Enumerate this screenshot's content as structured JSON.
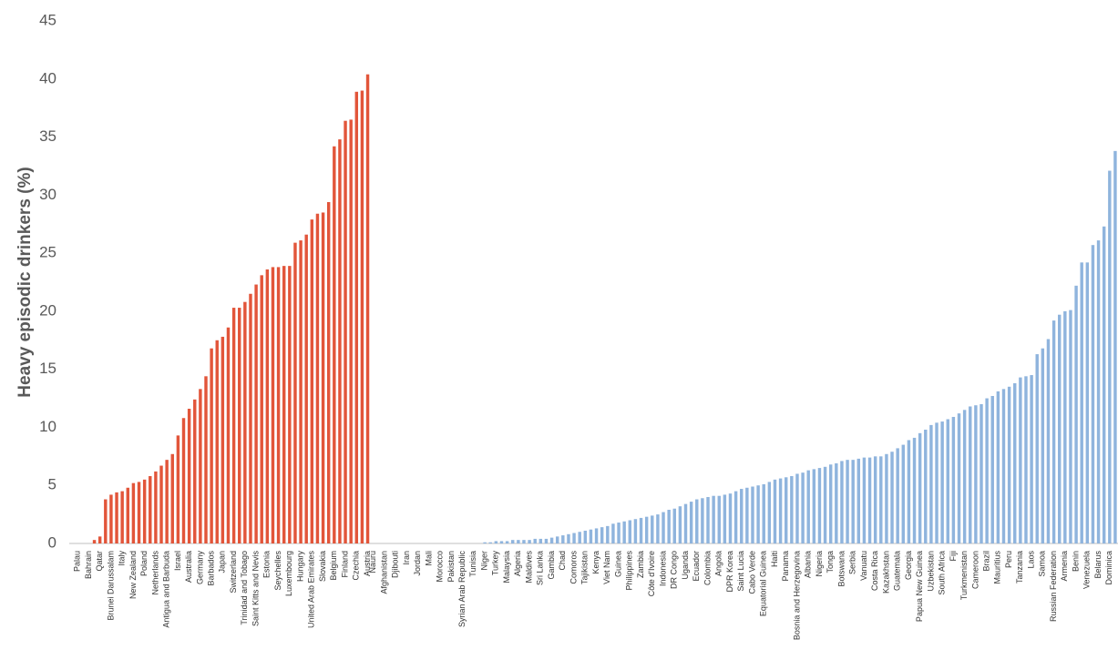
{
  "chart_data": {
    "type": "bar",
    "y_label": "Heavy episodic drinkers (%)",
    "ylim": [
      0,
      45
    ],
    "yticks": [
      0,
      5,
      10,
      15,
      20,
      25,
      30,
      35,
      40,
      45
    ],
    "grid": false,
    "series": [
      {
        "color": "#e2553a",
        "categories": [
          null,
          "Palau",
          null,
          "Bahrain",
          null,
          "Qatar",
          null,
          "Brunei Darussalam",
          null,
          "Italy",
          null,
          "New Zealand",
          null,
          "Poland",
          null,
          "Netherlands",
          null,
          "Antigua and Barbuda",
          null,
          "Israel",
          null,
          "Australia",
          null,
          "Germany",
          null,
          "Barbados",
          null,
          "Japan",
          null,
          "Switzerland",
          null,
          "Trinidad and Tobago",
          null,
          "Saint Kitts and Nevis",
          null,
          "Estonia",
          null,
          "Seychelles",
          null,
          "Luxembourg",
          null,
          "Hungary",
          null,
          "United Arab Emirates",
          null,
          "Slovakia",
          null,
          "Belgium",
          null,
          "Finland",
          null,
          "Czechia",
          null,
          "Austria"
        ],
        "values": [
          0,
          0,
          0,
          0,
          0.3,
          0.6,
          3.8,
          4.2,
          4.4,
          4.5,
          4.8,
          5.2,
          5.3,
          5.5,
          5.8,
          6.2,
          6.7,
          7.2,
          7.7,
          9.3,
          10.8,
          11.6,
          12.4,
          13.3,
          14.4,
          16.8,
          17.5,
          17.8,
          18.6,
          20.3,
          20.3,
          20.8,
          21.5,
          22.3,
          23.1,
          23.6,
          23.8,
          23.8,
          23.9,
          23.9,
          25.9,
          26.1,
          26.6,
          27.9,
          28.4,
          28.5,
          29.4,
          34.2,
          34.8,
          36.4,
          36.5,
          38.9,
          39.0,
          40.4
        ]
      },
      {
        "color": "#8fb4dd",
        "categories": [
          "Nauru",
          null,
          "Afghanistan",
          null,
          "Djibouti",
          null,
          "Iran",
          null,
          "Jordan",
          null,
          "Mali",
          null,
          "Morocco",
          null,
          "Pakistan",
          null,
          "Syrian Arab Republic",
          null,
          "Tunisia",
          null,
          "Niger",
          null,
          "Turkey",
          null,
          "Malaysia",
          null,
          "Algeria",
          null,
          "Maldives",
          null,
          "Sri Lanka",
          null,
          "Gambia",
          null,
          "Chad",
          null,
          "Comoros",
          null,
          "Tajikistan",
          null,
          "Kenya",
          null,
          "Viet Nam",
          null,
          "Guinea",
          null,
          "Philippines",
          null,
          "Zambia",
          null,
          "Côte d'Ivoire",
          null,
          "Indonesia",
          null,
          "DR Congo",
          null,
          "Uganda",
          null,
          "Ecuador",
          null,
          "Colombia",
          null,
          "Angola",
          null,
          "DPR Korea",
          null,
          "Saint Lucia",
          null,
          "Cabo Verde",
          null,
          "Equatorial Guinea",
          null,
          "Haiti",
          null,
          "Panama",
          null,
          "Bosnia and Herzegovina",
          null,
          "Albania",
          null,
          "Nigeria",
          null,
          "Tonga",
          null,
          "Botswana",
          null,
          "Serbia",
          null,
          "Vanuatu",
          null,
          "Costa Rica",
          null,
          "Kazakhstan",
          null,
          "Guatemala",
          null,
          "Georgia",
          null,
          "Papua New Guinea",
          null,
          "Uzbekistan",
          null,
          "South Africa",
          null,
          "Fiji",
          null,
          "Turkmenistan",
          null,
          "Cameroon",
          null,
          "Brazil",
          null,
          "Mauritius",
          null,
          "Peru",
          null,
          "Tanzania",
          null,
          "Laos",
          null,
          "Samoa",
          null,
          "Russian Federation",
          null,
          "Armenia",
          null,
          "Benin",
          null,
          "Venezuela",
          null,
          "Belarus",
          null,
          "Dominica",
          null
        ],
        "values": [
          0,
          0,
          0,
          0,
          0,
          0,
          0,
          0,
          0,
          0,
          0,
          0,
          0,
          0,
          0,
          0,
          0,
          0,
          0,
          0,
          0.1,
          0.1,
          0.2,
          0.2,
          0.2,
          0.3,
          0.3,
          0.3,
          0.3,
          0.4,
          0.4,
          0.4,
          0.5,
          0.6,
          0.7,
          0.8,
          0.9,
          1.0,
          1.1,
          1.2,
          1.3,
          1.4,
          1.5,
          1.7,
          1.8,
          1.9,
          2.0,
          2.1,
          2.2,
          2.3,
          2.4,
          2.5,
          2.7,
          2.9,
          3.0,
          3.2,
          3.4,
          3.6,
          3.8,
          3.9,
          4.0,
          4.1,
          4.1,
          4.2,
          4.3,
          4.5,
          4.7,
          4.8,
          4.9,
          5.0,
          5.1,
          5.3,
          5.5,
          5.6,
          5.7,
          5.8,
          6.0,
          6.1,
          6.3,
          6.4,
          6.5,
          6.6,
          6.8,
          6.9,
          7.1,
          7.2,
          7.2,
          7.3,
          7.4,
          7.4,
          7.5,
          7.5,
          7.7,
          7.9,
          8.2,
          8.5,
          8.9,
          9.1,
          9.5,
          9.8,
          10.2,
          10.4,
          10.5,
          10.7,
          10.9,
          11.2,
          11.5,
          11.8,
          11.9,
          12.0,
          12.5,
          12.7,
          13.1,
          13.3,
          13.5,
          13.8,
          14.3,
          14.4,
          14.5,
          16.3,
          16.8,
          17.6,
          19.2,
          19.7,
          20.0,
          20.1,
          22.2,
          24.2,
          24.2,
          25.7,
          26.1,
          27.3,
          32.1,
          33.8
        ]
      }
    ]
  }
}
